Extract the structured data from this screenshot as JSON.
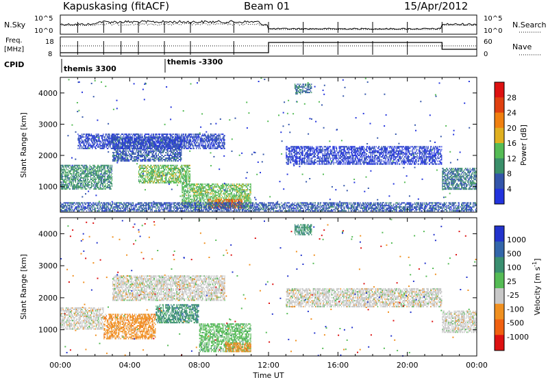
{
  "header": {
    "station": "Kapuskasing (fitACF)",
    "beam": "Beam 01",
    "date": "15/Apr/2012"
  },
  "noise_panel": {
    "left_label": "N.Sky",
    "right_label": "N.Search",
    "left_ticks": [
      "10^5",
      "10^0"
    ],
    "right_ticks": [
      "10^5",
      "10^0"
    ]
  },
  "freq_panel": {
    "left_label_1": "Freq.",
    "left_label_2": "[MHz]",
    "right_label": "Nave",
    "left_ticks": [
      "18",
      "8"
    ],
    "right_ticks": [
      "60",
      "0"
    ]
  },
  "cpid": {
    "label": "CPID",
    "programs": [
      "themis 3300",
      "themis -3300"
    ]
  },
  "x_axis": {
    "label": "Time UT",
    "ticks": [
      "00:00",
      "04:00",
      "08:00",
      "12:00",
      "16:00",
      "20:00",
      "00:00"
    ]
  },
  "colors": {
    "power": [
      "#2233dd",
      "#3355aa",
      "#3a8f6a",
      "#55bb55",
      "#e0b020",
      "#f08010",
      "#e04010",
      "#dd1111"
    ],
    "velocity": [
      "#2233cc",
      "#3366aa",
      "#3a8f70",
      "#55bb55",
      "#c8c8c8",
      "#f09020",
      "#f06010",
      "#dd1111"
    ]
  },
  "chart_data": [
    {
      "type": "heatmap",
      "title": "Power",
      "xlabel": "Time UT",
      "ylabel": "Slant Range [km]",
      "x_range_hours": [
        0,
        24
      ],
      "ylim": [
        180,
        4500
      ],
      "y_ticks": [
        1000,
        2000,
        3000,
        4000
      ],
      "colorbar": {
        "label": "Power [dB]",
        "ticks": [
          "4",
          "8",
          "12",
          "16",
          "20",
          "24",
          "28"
        ],
        "range": [
          0,
          30
        ]
      },
      "regions": [
        {
          "t0": 0.0,
          "t1": 3.0,
          "r0": 900,
          "r1": 1700,
          "level": 10
        },
        {
          "t0": 3.0,
          "t1": 7.0,
          "r0": 1800,
          "r1": 2600,
          "level": 6
        },
        {
          "t0": 1.0,
          "t1": 9.5,
          "r0": 2200,
          "r1": 2700,
          "level": 4
        },
        {
          "t0": 4.5,
          "t1": 7.5,
          "r0": 1100,
          "r1": 1700,
          "level": 14
        },
        {
          "t0": 7.0,
          "t1": 11.0,
          "r0": 300,
          "r1": 1100,
          "level": 14
        },
        {
          "t0": 8.5,
          "t1": 10.5,
          "r0": 300,
          "r1": 600,
          "level": 24
        },
        {
          "t0": 13.0,
          "t1": 22.0,
          "r0": 1700,
          "r1": 2300,
          "level": 3
        },
        {
          "t0": 13.5,
          "t1": 14.5,
          "r0": 3950,
          "r1": 4300,
          "level": 8
        },
        {
          "t0": 22.0,
          "t1": 24.0,
          "r0": 900,
          "r1": 1600,
          "level": 8
        },
        {
          "t0": 0.0,
          "t1": 24.0,
          "r0": 200,
          "r1": 500,
          "level": 6
        }
      ]
    },
    {
      "type": "heatmap",
      "title": "Velocity",
      "xlabel": "Time UT",
      "ylabel": "Slant Range [km]",
      "x_range_hours": [
        0,
        24
      ],
      "ylim": [
        180,
        4500
      ],
      "y_ticks": [
        1000,
        2000,
        3000,
        4000
      ],
      "colorbar": {
        "label": "Velocity [m s^-1]",
        "ticks": [
          "1000",
          "500",
          "100",
          "25",
          "-25",
          "-100",
          "-500",
          "-1000"
        ]
      },
      "regions": [
        {
          "t0": 0.0,
          "t1": 2.5,
          "r0": 1000,
          "r1": 1700,
          "level": "-25..25"
        },
        {
          "t0": 2.5,
          "t1": 5.5,
          "r0": 700,
          "r1": 1500,
          "level": "-500..-100"
        },
        {
          "t0": 3.0,
          "t1": 9.5,
          "r0": 1900,
          "r1": 2700,
          "level": "-25..25"
        },
        {
          "t0": 5.5,
          "t1": 8.0,
          "r0": 1200,
          "r1": 1800,
          "level": "100..500"
        },
        {
          "t0": 8.0,
          "t1": 11.0,
          "r0": 300,
          "r1": 1200,
          "level": "25..100"
        },
        {
          "t0": 9.5,
          "t1": 11.0,
          "r0": 300,
          "r1": 600,
          "level": "-500..-100"
        },
        {
          "t0": 13.0,
          "t1": 22.0,
          "r0": 1700,
          "r1": 2300,
          "level": "-25..25"
        },
        {
          "t0": 13.5,
          "t1": 14.5,
          "r0": 3950,
          "r1": 4300,
          "level": "100..500"
        },
        {
          "t0": 22.0,
          "t1": 24.0,
          "r0": 900,
          "r1": 1600,
          "level": "-25..25"
        }
      ]
    }
  ]
}
